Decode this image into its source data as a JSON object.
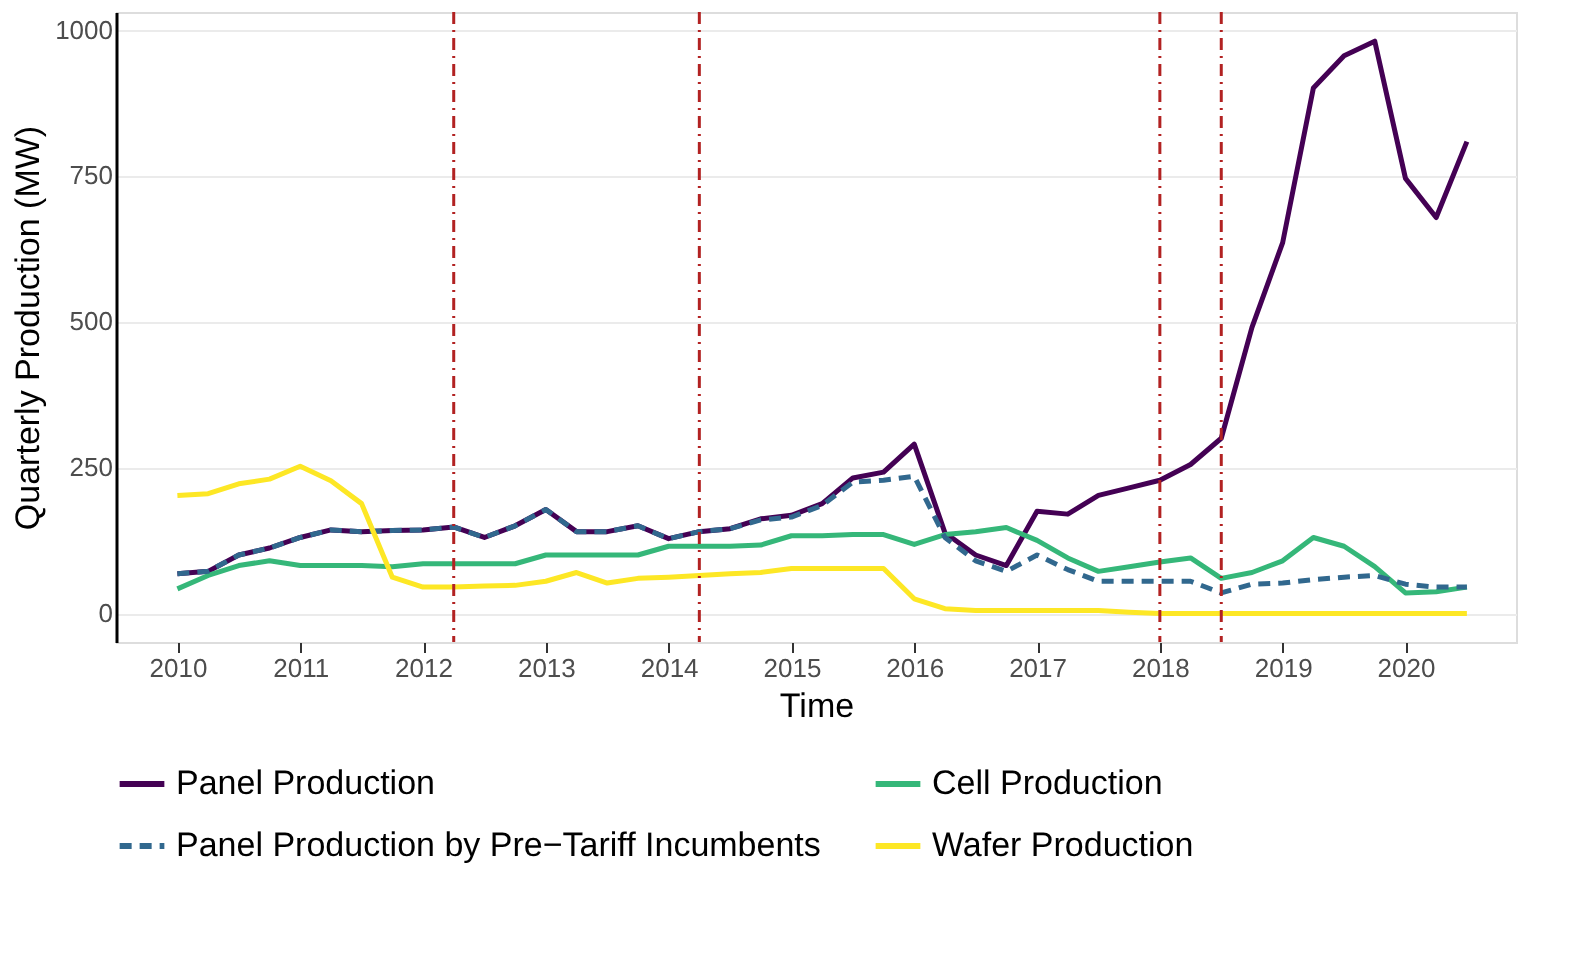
{
  "chart_data": {
    "type": "line",
    "xlabel": "Time",
    "ylabel": "Quarterly Production (MW)",
    "x": [
      2010,
      2010.25,
      2010.5,
      2010.75,
      2011,
      2011.25,
      2011.5,
      2011.75,
      2012,
      2012.25,
      2012.5,
      2012.75,
      2013,
      2013.25,
      2013.5,
      2013.75,
      2014,
      2014.25,
      2014.5,
      2014.75,
      2015,
      2015.25,
      2015.5,
      2015.75,
      2016,
      2016.25,
      2016.5,
      2016.75,
      2017,
      2017.25,
      2017.5,
      2017.75,
      2018,
      2018.25,
      2018.5,
      2018.75,
      2019,
      2019.25,
      2019.5,
      2019.75,
      2020,
      2020.25,
      2020.5
    ],
    "series": [
      {
        "name": "Panel Production",
        "color": "#440154",
        "line_style": "solid",
        "values": [
          68,
          72,
          100,
          112,
          130,
          143,
          140,
          142,
          143,
          148,
          130,
          150,
          178,
          140,
          140,
          150,
          128,
          140,
          145,
          162,
          168,
          188,
          232,
          242,
          290,
          138,
          100,
          82,
          175,
          170,
          202,
          215,
          228,
          255,
          300,
          490,
          635,
          900,
          955,
          980,
          745,
          678,
          808
        ]
      },
      {
        "name": "Cell Production",
        "color": "#35b779",
        "line_style": "solid",
        "values": [
          42,
          65,
          82,
          90,
          82,
          82,
          82,
          80,
          85,
          85,
          85,
          85,
          100,
          100,
          100,
          100,
          115,
          115,
          115,
          117,
          133,
          133,
          135,
          135,
          118,
          135,
          140,
          147,
          125,
          95,
          72,
          80,
          88,
          95,
          60,
          70,
          90,
          130,
          115,
          80,
          35,
          37,
          45
        ]
      },
      {
        "name": "Panel Production by Pre−Tariff Incumbents",
        "color": "#31688e",
        "line_style": "dashed",
        "values": [
          68,
          72,
          100,
          112,
          130,
          143,
          140,
          142,
          143,
          148,
          130,
          150,
          178,
          140,
          140,
          150,
          128,
          140,
          145,
          160,
          165,
          185,
          225,
          228,
          235,
          130,
          90,
          72,
          100,
          75,
          55,
          55,
          55,
          55,
          35,
          50,
          52,
          58,
          62,
          65,
          50,
          45,
          45
        ]
      },
      {
        "name": "Wafer Production",
        "color": "#fde725",
        "line_style": "solid",
        "values": [
          202,
          205,
          222,
          230,
          252,
          227,
          188,
          62,
          45,
          45,
          47,
          48,
          55,
          70,
          52,
          60,
          62,
          65,
          68,
          70,
          77,
          77,
          77,
          77,
          25,
          8,
          5,
          5,
          5,
          5,
          5,
          2,
          0,
          0,
          0,
          0,
          0,
          0,
          0,
          0,
          0,
          0,
          0
        ]
      }
    ],
    "xlim": [
      2009.5,
      2020.9
    ],
    "xticks": [
      2010,
      2011,
      2012,
      2013,
      2014,
      2015,
      2016,
      2017,
      2018,
      2019,
      2020
    ],
    "ylim": [
      -49,
      1030
    ],
    "yticks": [
      0,
      250,
      500,
      750,
      1000
    ],
    "ref_lines": [
      {
        "axis": "x",
        "value": 2012.25,
        "color": "#b22222",
        "line_style": "dashdot"
      },
      {
        "axis": "x",
        "value": 2014.25,
        "color": "#b22222",
        "line_style": "dashdot"
      },
      {
        "axis": "x",
        "value": 2018,
        "color": "#b22222",
        "line_style": "dashdot"
      },
      {
        "axis": "x",
        "value": 2018.5,
        "color": "#b22222",
        "line_style": "dashdot"
      }
    ],
    "grid": "y",
    "legend": "bottom"
  }
}
